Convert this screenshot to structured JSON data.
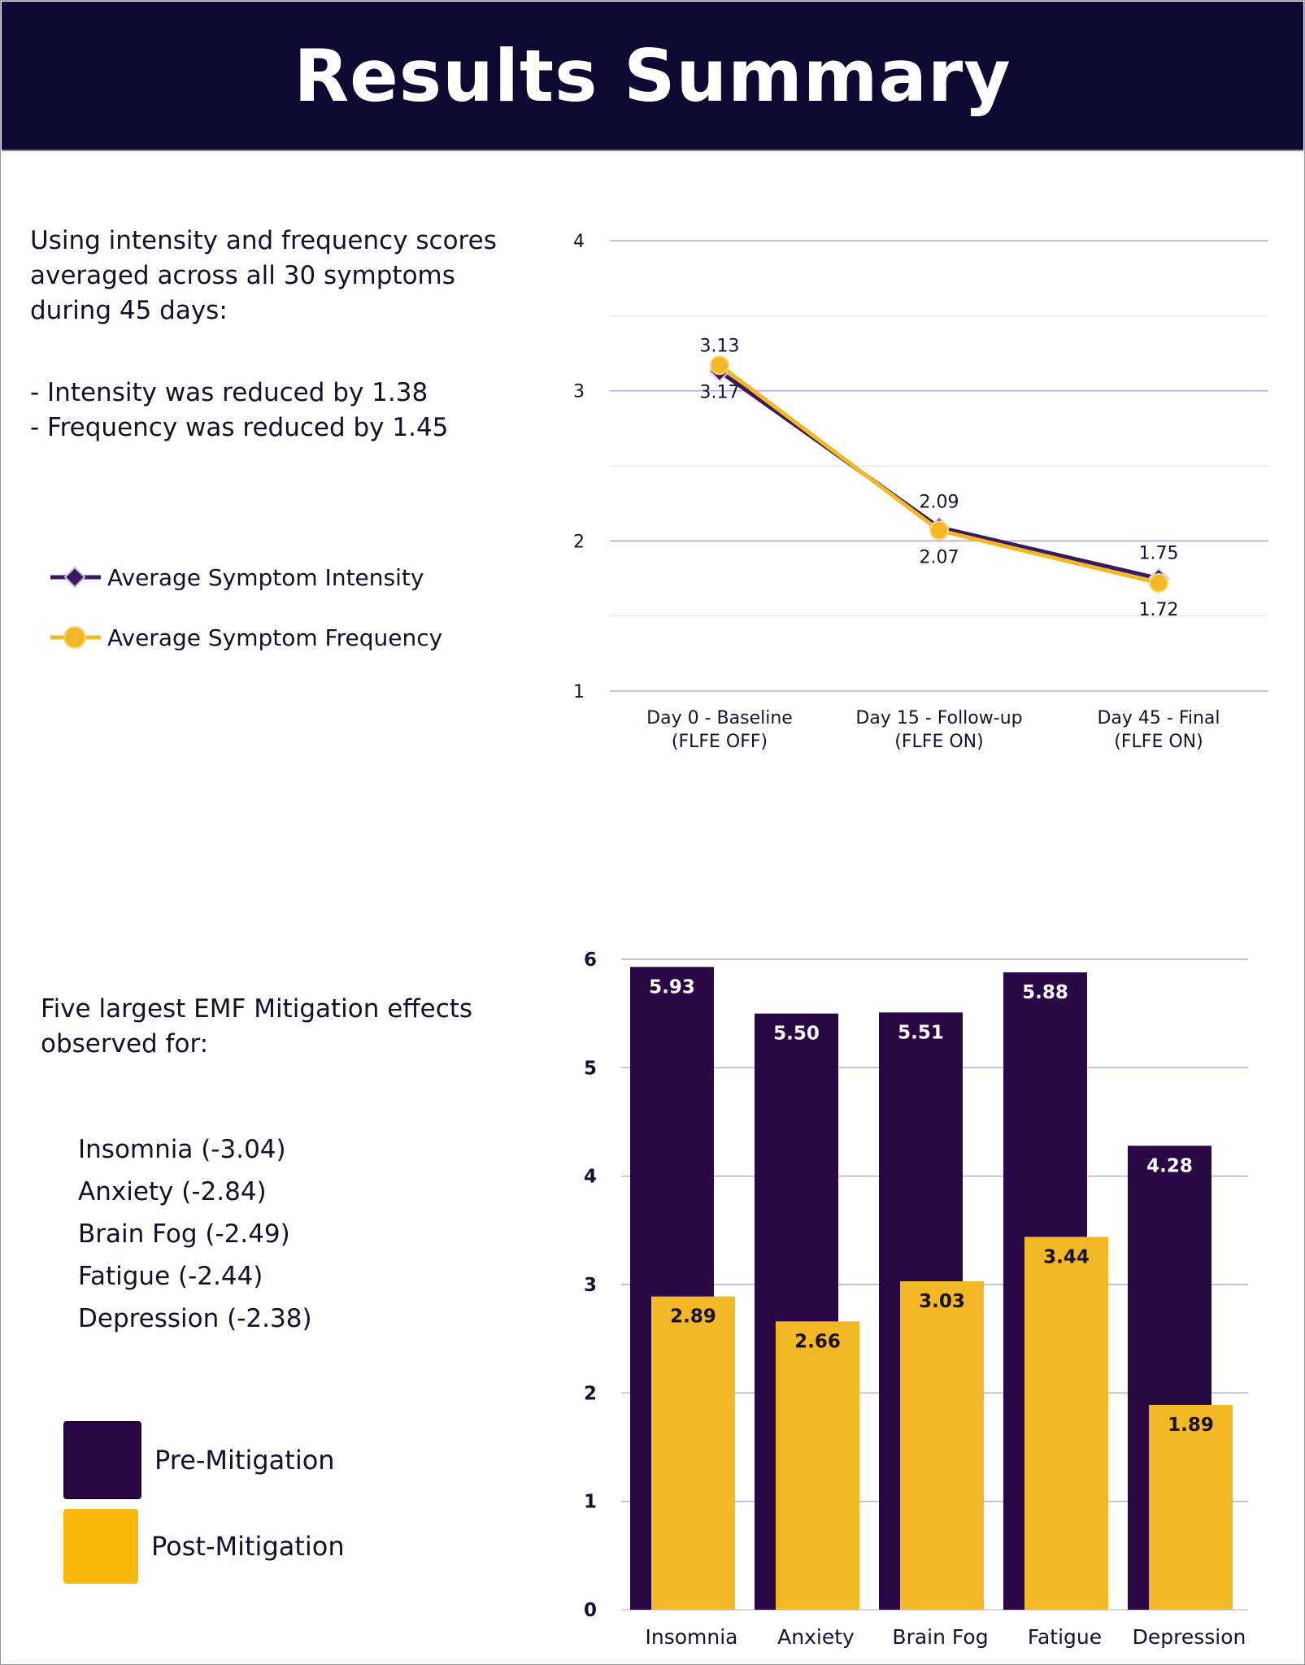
{
  "header": {
    "title": "Results Summary"
  },
  "intro": {
    "text": "Using intensity and frequency scores averaged across all 30 symptoms during 45 days:",
    "bullet_1": "- Intensity was reduced by 1.38",
    "bullet_2": "- Frequency was reduced by 1.45"
  },
  "effects": {
    "heading": "Five largest EMF Mitigation effects observed for:",
    "items": [
      "Insomnia (-3.04)",
      "Anxiety (-2.84)",
      "Brain Fog (-2.49)",
      "Fatigue (-2.44)",
      "Depression (-2.38)"
    ]
  },
  "legend_bar": {
    "pre": "Pre-Mitigation",
    "post": "Post-Mitigation"
  },
  "colors": {
    "header_bg": "#0e0930",
    "dark_purple": "#2a0845",
    "intensity_line": "#3a1a5c",
    "gold": "#f2b825",
    "grid": "#b9a6d6"
  },
  "chart_data": [
    {
      "type": "line",
      "categories": [
        "Day 0 - Baseline\n(FLFE OFF)",
        "Day 15 - Follow-up\n(FLFE ON)",
        "Day 45 - Final\n(FLFE ON)"
      ],
      "series": [
        {
          "name": "Average Symptom Intensity",
          "values": [
            3.13,
            2.09,
            1.75
          ],
          "color": "#3a1a5c",
          "marker": "diamond"
        },
        {
          "name": "Average Symptom Frequency",
          "values": [
            3.17,
            2.07,
            1.72
          ],
          "color": "#f2b825",
          "marker": "circle"
        }
      ],
      "ylim": [
        1,
        4
      ],
      "yticks": [
        1,
        2,
        3,
        4
      ],
      "grid": true,
      "legend": "left"
    },
    {
      "type": "bar",
      "categories": [
        "Insomnia",
        "Anxiety",
        "Brain Fog",
        "Fatigue",
        "Depression"
      ],
      "series": [
        {
          "name": "Pre-Mitigation",
          "values": [
            5.93,
            5.5,
            5.51,
            5.88,
            4.28
          ],
          "labels": [
            "5.93",
            "5.50",
            "5.51",
            "5.88",
            "4.28"
          ],
          "color": "#2a0845"
        },
        {
          "name": "Post-Mitigation",
          "values": [
            2.89,
            2.66,
            3.03,
            3.44,
            1.89
          ],
          "labels": [
            "2.89",
            "2.66",
            "3.03",
            "3.44",
            "1.89"
          ],
          "color": "#f2b825"
        }
      ],
      "ylim": [
        0,
        6
      ],
      "yticks": [
        0,
        1,
        2,
        3,
        4,
        5,
        6
      ],
      "grid": true,
      "legend": "left"
    }
  ]
}
